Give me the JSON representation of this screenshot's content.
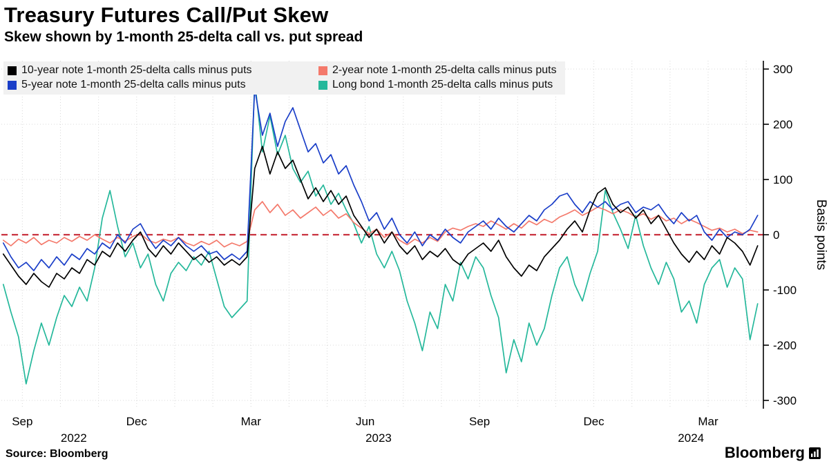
{
  "chart_data": {
    "type": "line",
    "title": "Treasury Futures Call/Put Skew",
    "subtitle": "Skew shown by 1-month 25-delta call vs. put spread",
    "ylabel": "Basis points",
    "ylim": [
      -315,
      315
    ],
    "y_ticks": [
      300,
      200,
      100,
      0,
      -100,
      -200,
      -300
    ],
    "x_unit": "months since 2022-08-01",
    "t_start": 0.5,
    "t_step": 0.2,
    "t_range": [
      0.45,
      20.45
    ],
    "x_ticks": [
      {
        "label": "Sep",
        "t": 1
      },
      {
        "label": "Dec",
        "t": 4
      },
      {
        "label": "Mar",
        "t": 7
      },
      {
        "label": "Jun",
        "t": 10
      },
      {
        "label": "Sep",
        "t": 13
      },
      {
        "label": "Dec",
        "t": 16
      },
      {
        "label": "Mar",
        "t": 19
      }
    ],
    "year_labels": [
      {
        "label": "2022",
        "t": 2.35
      },
      {
        "label": "2023",
        "t": 10.35
      },
      {
        "label": "2024",
        "t": 18.55
      }
    ],
    "grid": true,
    "legend_position": "top-left",
    "zero_line": {
      "value": 0,
      "color": "#c9303e",
      "style": "dashed"
    },
    "z_order": [
      3,
      1,
      2,
      0
    ],
    "series": [
      {
        "id": "10-year-note",
        "name": "10-year note 1-month 25-delta calls minus puts",
        "color": "#000000",
        "values": [
          -35,
          -55,
          -75,
          -90,
          -70,
          -85,
          -95,
          -70,
          -80,
          -60,
          -70,
          -45,
          -55,
          -30,
          -40,
          -15,
          -30,
          -10,
          5,
          -25,
          -40,
          -20,
          -35,
          -15,
          -30,
          -45,
          -35,
          -50,
          -40,
          -55,
          -45,
          -55,
          -40,
          120,
          160,
          110,
          150,
          120,
          135,
          100,
          65,
          85,
          60,
          80,
          55,
          70,
          35,
          15,
          -5,
          10,
          -15,
          5,
          -20,
          -35,
          -20,
          -45,
          -30,
          -40,
          -25,
          -45,
          -55,
          -35,
          -25,
          -15,
          -30,
          -10,
          -40,
          -60,
          -75,
          -55,
          -65,
          -40,
          -25,
          -10,
          10,
          25,
          5,
          45,
          75,
          85,
          55,
          40,
          50,
          30,
          45,
          20,
          35,
          10,
          -15,
          -35,
          -50,
          -30,
          -45,
          -20,
          -35,
          -5,
          -15,
          -30,
          -55,
          -20
        ]
      },
      {
        "id": "2-year-note",
        "name": "2-year note 1-month 25-delta calls minus puts",
        "color": "#f4796b",
        "values": [
          -10,
          -20,
          -8,
          -15,
          -5,
          -18,
          -10,
          -15,
          -5,
          -12,
          -3,
          -10,
          0,
          -8,
          -15,
          -5,
          -12,
          -3,
          2,
          -10,
          -15,
          -8,
          -12,
          -5,
          -15,
          -20,
          -12,
          -18,
          -10,
          -22,
          -15,
          -20,
          -12,
          45,
          60,
          40,
          55,
          35,
          45,
          30,
          40,
          50,
          35,
          45,
          30,
          38,
          22,
          12,
          2,
          10,
          -5,
          5,
          -10,
          -18,
          -8,
          -15,
          -5,
          -12,
          5,
          12,
          8,
          15,
          20,
          15,
          25,
          18,
          10,
          20,
          12,
          25,
          18,
          28,
          22,
          32,
          38,
          45,
          35,
          42,
          50,
          45,
          38,
          45,
          40,
          32,
          38,
          28,
          35,
          25,
          30,
          20,
          28,
          22,
          15,
          8,
          12,
          5,
          10,
          2,
          8,
          5
        ]
      },
      {
        "id": "5-year-note",
        "name": "5-year note 1-month 25-delta calls minus puts",
        "color": "#1a3ec8",
        "values": [
          -15,
          -40,
          -60,
          -50,
          -65,
          -45,
          -60,
          -40,
          -55,
          -35,
          -45,
          -25,
          -35,
          -15,
          -25,
          0,
          -15,
          10,
          20,
          -5,
          -25,
          -10,
          -20,
          -5,
          -20,
          -30,
          -20,
          -35,
          -30,
          -45,
          -35,
          -45,
          -30,
          265,
          180,
          220,
          160,
          205,
          230,
          190,
          150,
          165,
          130,
          145,
          110,
          125,
          90,
          60,
          25,
          40,
          10,
          30,
          0,
          -15,
          5,
          -20,
          0,
          -10,
          10,
          -5,
          -15,
          5,
          15,
          25,
          10,
          30,
          15,
          5,
          20,
          35,
          25,
          45,
          55,
          70,
          75,
          55,
          40,
          60,
          50,
          60,
          45,
          55,
          60,
          40,
          50,
          45,
          55,
          35,
          20,
          40,
          25,
          35,
          5,
          -10,
          10,
          -5,
          5,
          0,
          10,
          35
        ]
      },
      {
        "id": "long-bond",
        "name": "Long bond 1-month 25-delta calls minus puts",
        "color": "#25b89b",
        "values": [
          -90,
          -140,
          -185,
          -270,
          -210,
          -160,
          -200,
          -150,
          -110,
          -130,
          -95,
          -120,
          -60,
          30,
          80,
          15,
          -40,
          -15,
          -60,
          -35,
          -90,
          -120,
          -70,
          -50,
          -65,
          -40,
          -55,
          -30,
          -80,
          -130,
          -150,
          -135,
          -120,
          280,
          150,
          215,
          145,
          180,
          120,
          95,
          115,
          70,
          90,
          55,
          75,
          45,
          20,
          -15,
          15,
          -35,
          -60,
          -30,
          -65,
          -120,
          -160,
          -210,
          -140,
          -170,
          -90,
          -120,
          -50,
          -80,
          -40,
          -60,
          -110,
          -150,
          -250,
          -190,
          -230,
          -160,
          -200,
          -170,
          -110,
          -60,
          -40,
          -90,
          -120,
          -70,
          -30,
          80,
          40,
          10,
          -25,
          35,
          -20,
          -60,
          -90,
          -50,
          -80,
          -140,
          -120,
          -160,
          -90,
          -60,
          -45,
          -95,
          -60,
          -80,
          -190,
          -125
        ]
      }
    ]
  },
  "footer": {
    "source": "Source: Bloomberg",
    "brand": "Bloomberg"
  }
}
